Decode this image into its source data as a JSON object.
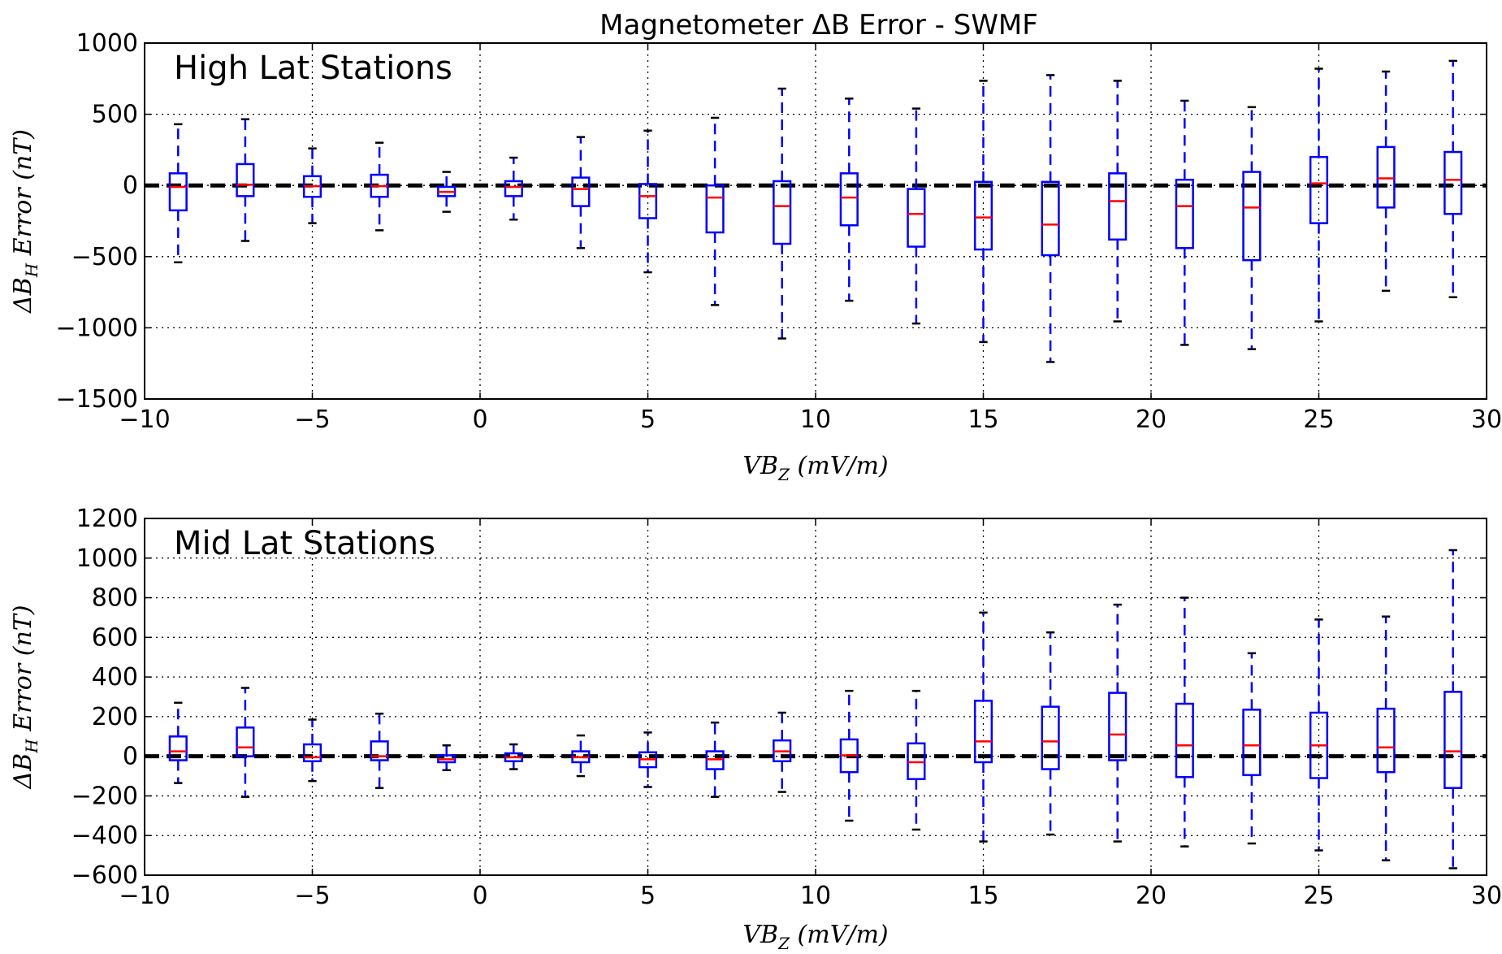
{
  "figure_title": "Magnetometer ΔB Error - SWMF",
  "chart_data": [
    {
      "type": "box",
      "panel_label": "High Lat Stations",
      "xlabel": "VB_Z (mV/m)",
      "ylabel": "ΔB_H Error (nT)",
      "xlim": [
        -10,
        30
      ],
      "ylim": [
        -1500,
        1000
      ],
      "xticks": [
        -10,
        -5,
        0,
        5,
        10,
        15,
        20,
        25,
        30
      ],
      "yticks": [
        -1500,
        -1000,
        -500,
        0,
        500,
        1000
      ],
      "grid": true,
      "zero_line": true,
      "box_width": 0.5,
      "colors": {
        "box": "#0000ff",
        "whisker": "#0000ff",
        "median": "#ff0000",
        "cap": "#000000",
        "zero_line": "#000000"
      },
      "x": [
        -9,
        -7,
        -5,
        -3,
        -1,
        1,
        3,
        5,
        7,
        9,
        11,
        13,
        15,
        17,
        19,
        21,
        23,
        25,
        27,
        29
      ],
      "boxes": [
        {
          "whislo": -540,
          "q1": -175,
          "med": -10,
          "q3": 85,
          "whishi": 430
        },
        {
          "whislo": -390,
          "q1": -75,
          "med": 5,
          "q3": 150,
          "whishi": 465
        },
        {
          "whislo": -265,
          "q1": -80,
          "med": -5,
          "q3": 65,
          "whishi": 260
        },
        {
          "whislo": -315,
          "q1": -80,
          "med": -5,
          "q3": 75,
          "whishi": 300
        },
        {
          "whislo": -185,
          "q1": -75,
          "med": -45,
          "q3": -10,
          "whishi": 95
        },
        {
          "whislo": -240,
          "q1": -75,
          "med": -10,
          "q3": 30,
          "whishi": 195
        },
        {
          "whislo": -440,
          "q1": -145,
          "med": -25,
          "q3": 55,
          "whishi": 340
        },
        {
          "whislo": -610,
          "q1": -230,
          "med": -75,
          "q3": 10,
          "whishi": 385
        },
        {
          "whislo": -840,
          "q1": -330,
          "med": -85,
          "q3": 0,
          "whishi": 475
        },
        {
          "whislo": -1075,
          "q1": -410,
          "med": -145,
          "q3": 30,
          "whishi": 680
        },
        {
          "whislo": -810,
          "q1": -280,
          "med": -85,
          "q3": 85,
          "whishi": 610
        },
        {
          "whislo": -970,
          "q1": -430,
          "med": -200,
          "q3": -25,
          "whishi": 540
        },
        {
          "whislo": -1100,
          "q1": -450,
          "med": -225,
          "q3": 25,
          "whishi": 735
        },
        {
          "whislo": -1240,
          "q1": -490,
          "med": -275,
          "q3": 25,
          "whishi": 775
        },
        {
          "whislo": -955,
          "q1": -380,
          "med": -110,
          "q3": 85,
          "whishi": 735
        },
        {
          "whislo": -1120,
          "q1": -440,
          "med": -145,
          "q3": 40,
          "whishi": 595
        },
        {
          "whislo": -1150,
          "q1": -525,
          "med": -155,
          "q3": 95,
          "whishi": 550
        },
        {
          "whislo": -955,
          "q1": -265,
          "med": 15,
          "q3": 200,
          "whishi": 820
        },
        {
          "whislo": -740,
          "q1": -155,
          "med": 50,
          "q3": 270,
          "whishi": 800
        },
        {
          "whislo": -785,
          "q1": -200,
          "med": 40,
          "q3": 235,
          "whishi": 875
        }
      ]
    },
    {
      "type": "box",
      "panel_label": "Mid Lat Stations",
      "xlabel": "VB_Z (mV/m)",
      "ylabel": "ΔB_H Error (nT)",
      "xlim": [
        -10,
        30
      ],
      "ylim": [
        -600,
        1200
      ],
      "xticks": [
        -10,
        -5,
        0,
        5,
        10,
        15,
        20,
        25,
        30
      ],
      "yticks": [
        -600,
        -400,
        -200,
        0,
        200,
        400,
        600,
        800,
        1000,
        1200
      ],
      "grid": true,
      "zero_line": true,
      "box_width": 0.5,
      "colors": {
        "box": "#0000ff",
        "whisker": "#0000ff",
        "median": "#ff0000",
        "cap": "#000000",
        "zero_line": "#000000"
      },
      "x": [
        -9,
        -7,
        -5,
        -3,
        -1,
        1,
        3,
        5,
        7,
        9,
        11,
        13,
        15,
        17,
        19,
        21,
        23,
        25,
        27,
        29
      ],
      "boxes": [
        {
          "whislo": -135,
          "q1": -20,
          "med": 25,
          "q3": 100,
          "whishi": 270
        },
        {
          "whislo": -205,
          "q1": 0,
          "med": 45,
          "q3": 145,
          "whishi": 345
        },
        {
          "whislo": -125,
          "q1": -25,
          "med": -5,
          "q3": 60,
          "whishi": 185
        },
        {
          "whislo": -160,
          "q1": -20,
          "med": 0,
          "q3": 75,
          "whishi": 215
        },
        {
          "whislo": -70,
          "q1": -30,
          "med": -15,
          "q3": 5,
          "whishi": 55
        },
        {
          "whislo": -65,
          "q1": -25,
          "med": -5,
          "q3": 15,
          "whishi": 60
        },
        {
          "whislo": -100,
          "q1": -30,
          "med": -5,
          "q3": 25,
          "whishi": 105
        },
        {
          "whislo": -155,
          "q1": -55,
          "med": -15,
          "q3": 20,
          "whishi": 120
        },
        {
          "whislo": -205,
          "q1": -65,
          "med": -15,
          "q3": 25,
          "whishi": 170
        },
        {
          "whislo": -180,
          "q1": -25,
          "med": 25,
          "q3": 80,
          "whishi": 220
        },
        {
          "whislo": -325,
          "q1": -80,
          "med": 5,
          "q3": 85,
          "whishi": 330
        },
        {
          "whislo": -370,
          "q1": -115,
          "med": -30,
          "q3": 65,
          "whishi": 330
        },
        {
          "whislo": -430,
          "q1": -30,
          "med": 75,
          "q3": 280,
          "whishi": 725
        },
        {
          "whislo": -395,
          "q1": -65,
          "med": 75,
          "q3": 250,
          "whishi": 625
        },
        {
          "whislo": -430,
          "q1": -20,
          "med": 110,
          "q3": 320,
          "whishi": 765
        },
        {
          "whislo": -455,
          "q1": -105,
          "med": 55,
          "q3": 265,
          "whishi": 800
        },
        {
          "whislo": -440,
          "q1": -95,
          "med": 55,
          "q3": 235,
          "whishi": 520
        },
        {
          "whislo": -475,
          "q1": -110,
          "med": 55,
          "q3": 220,
          "whishi": 690
        },
        {
          "whislo": -525,
          "q1": -80,
          "med": 45,
          "q3": 240,
          "whishi": 705
        },
        {
          "whislo": -565,
          "q1": -160,
          "med": 25,
          "q3": 325,
          "whishi": 1040
        }
      ]
    }
  ]
}
